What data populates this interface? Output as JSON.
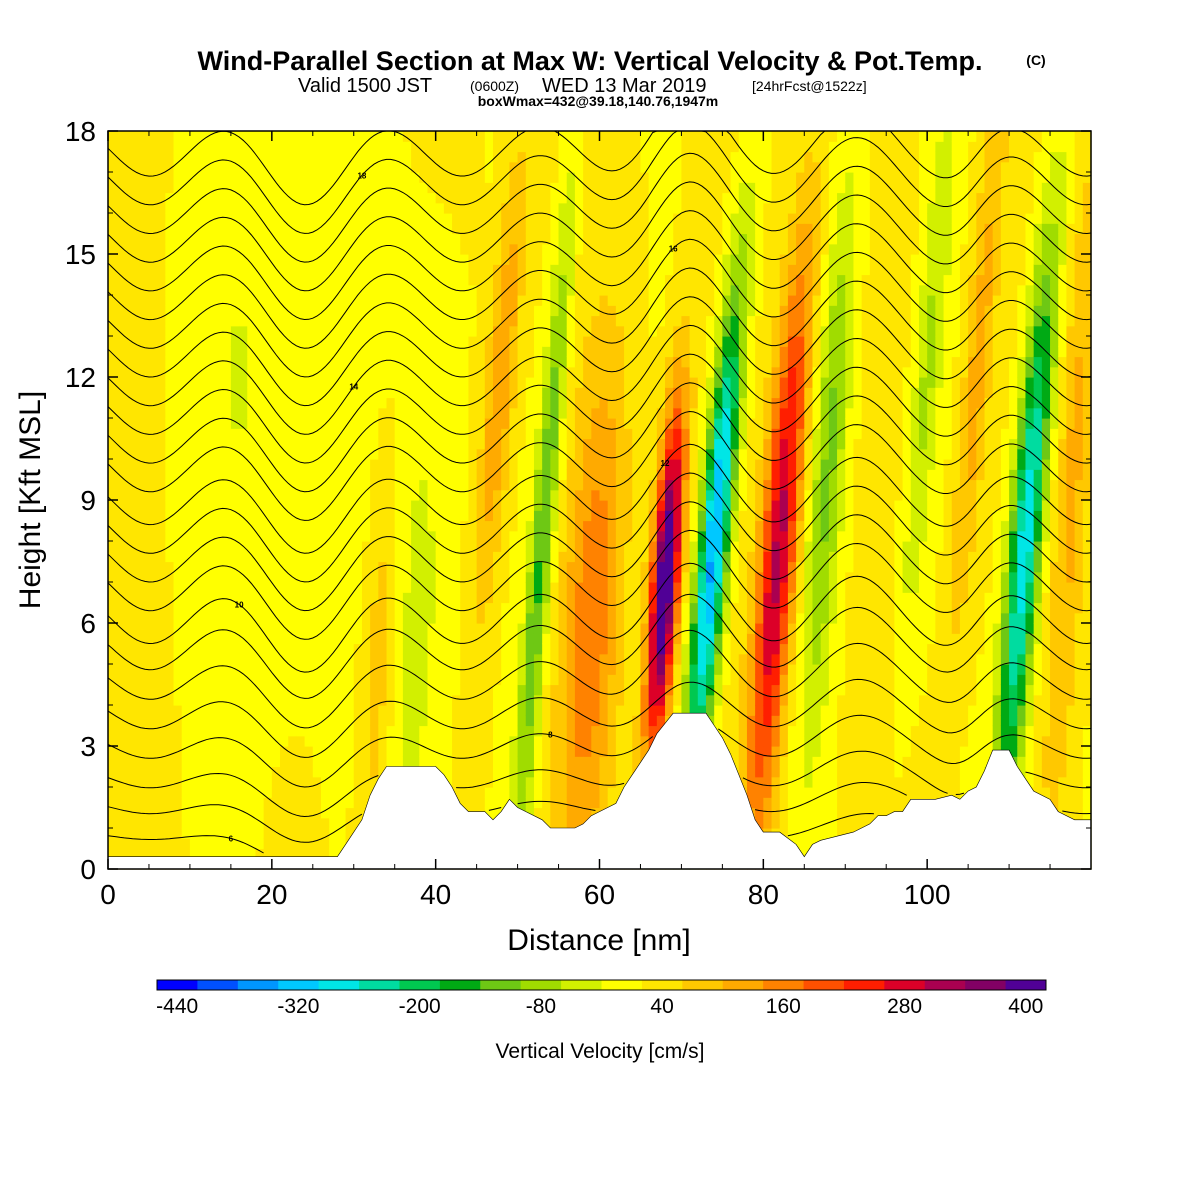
{
  "title": {
    "main": "Wind-Parallel Section at Max W: Vertical Velocity & Pot.Temp.",
    "copyright": "(C)",
    "valid_prefix": "Valid 1500 JST",
    "valid_zulu": "(0600Z)",
    "valid_date": "WED 13 Mar 2019",
    "valid_fcst": "[24hrFcst@1522z]",
    "boxline": "boxWmax=432@39.18,140.76,1947m"
  },
  "chart_data": {
    "type": "heatmap",
    "title": "Wind-Parallel Section at Max W: Vertical Velocity & Pot.Temp.",
    "xlabel": "Distance [nm]",
    "ylabel": "Height [Kft MSL]",
    "xlim": [
      0,
      120
    ],
    "ylim": [
      0,
      18
    ],
    "x_ticks": [
      "0",
      "20",
      "40",
      "60",
      "80",
      "100"
    ],
    "x_tick_values": [
      0,
      20,
      40,
      60,
      80,
      100
    ],
    "y_ticks": [
      "0",
      "3",
      "6",
      "9",
      "12",
      "15",
      "18"
    ],
    "y_tick_values": [
      0,
      3,
      6,
      9,
      12,
      15,
      18
    ],
    "colorbar": {
      "label": "Vertical Velocity [cm/s]",
      "tick_labels": [
        "-440",
        "-320",
        "-200",
        "-80",
        "40",
        "160",
        "280",
        "400"
      ],
      "tick_values": [
        -440,
        -320,
        -200,
        -80,
        40,
        160,
        280,
        400
      ],
      "min": -460,
      "step": 40,
      "colors": [
        "#0000ff",
        "#0050ff",
        "#0096ff",
        "#00c8ff",
        "#00e6e6",
        "#00dca0",
        "#00c850",
        "#00aa14",
        "#6ec814",
        "#a0dc00",
        "#d2f000",
        "#ffff00",
        "#ffe600",
        "#ffc800",
        "#ffaa00",
        "#ff8200",
        "#ff5000",
        "#ff1e00",
        "#dc0028",
        "#aa0050",
        "#820064",
        "#500096"
      ]
    },
    "terrain": [
      [
        0,
        0.3
      ],
      [
        10,
        0.3
      ],
      [
        20,
        0.3
      ],
      [
        28,
        0.3
      ],
      [
        29,
        0.6
      ],
      [
        31,
        1.2
      ],
      [
        32,
        1.8
      ],
      [
        33,
        2.2
      ],
      [
        34,
        2.5
      ],
      [
        40,
        2.5
      ],
      [
        41,
        2.3
      ],
      [
        42,
        2.0
      ],
      [
        43,
        1.6
      ],
      [
        44,
        1.4
      ],
      [
        46,
        1.4
      ],
      [
        47,
        1.2
      ],
      [
        48,
        1.4
      ],
      [
        49,
        1.7
      ],
      [
        50,
        1.5
      ],
      [
        51,
        1.4
      ],
      [
        53,
        1.2
      ],
      [
        54,
        1.0
      ],
      [
        57,
        1.0
      ],
      [
        58,
        1.1
      ],
      [
        59,
        1.3
      ],
      [
        60,
        1.4
      ],
      [
        62,
        1.6
      ],
      [
        63,
        2.0
      ],
      [
        64,
        2.3
      ],
      [
        65,
        2.6
      ],
      [
        66,
        2.9
      ],
      [
        67,
        3.3
      ],
      [
        69,
        3.8
      ],
      [
        73,
        3.8
      ],
      [
        74,
        3.5
      ],
      [
        75,
        3.2
      ],
      [
        76,
        2.8
      ],
      [
        77,
        2.3
      ],
      [
        78,
        1.8
      ],
      [
        79,
        1.2
      ],
      [
        80,
        0.9
      ],
      [
        82,
        0.9
      ],
      [
        84,
        0.6
      ],
      [
        85,
        0.3
      ],
      [
        86,
        0.6
      ],
      [
        87,
        0.7
      ],
      [
        91,
        0.9
      ],
      [
        93,
        1.1
      ],
      [
        94,
        1.3
      ],
      [
        95,
        1.3
      ],
      [
        96,
        1.4
      ],
      [
        97,
        1.4
      ],
      [
        98,
        1.7
      ],
      [
        101,
        1.7
      ],
      [
        103,
        1.8
      ],
      [
        104,
        1.7
      ],
      [
        105,
        1.9
      ],
      [
        106,
        2.0
      ],
      [
        107,
        2.4
      ],
      [
        108,
        2.9
      ],
      [
        110,
        2.9
      ],
      [
        111,
        2.5
      ],
      [
        112,
        2.2
      ],
      [
        113,
        1.9
      ],
      [
        115,
        1.7
      ],
      [
        116,
        1.4
      ],
      [
        118,
        1.2
      ],
      [
        120,
        1.2
      ]
    ],
    "w_features": [
      {
        "x": 68.0,
        "z": 7.0,
        "amp": 430,
        "sx": 1.2,
        "sz": 3.0,
        "tilt": 0.35
      },
      {
        "x": 74.0,
        "z": 8.0,
        "amp": -380,
        "sx": 1.3,
        "sz": 4.5,
        "tilt": 0.45
      },
      {
        "x": 82.0,
        "z": 8.0,
        "amp": 290,
        "sx": 1.6,
        "sz": 5.0,
        "tilt": 0.4
      },
      {
        "x": 112.0,
        "z": 8.0,
        "amp": -320,
        "sx": 1.4,
        "sz": 5.0,
        "tilt": 0.4
      },
      {
        "x": 53.0,
        "z": 8.0,
        "amp": -170,
        "sx": 1.0,
        "sz": 6.0,
        "tilt": 0.4
      },
      {
        "x": 59.0,
        "z": 6.0,
        "amp": 140,
        "sx": 2.5,
        "sz": 4.5,
        "tilt": 0.3
      },
      {
        "x": 48.0,
        "z": 12.0,
        "amp": 120,
        "sx": 1.3,
        "sz": 4.0,
        "tilt": 0.4
      },
      {
        "x": 88.0,
        "z": 10.0,
        "amp": -130,
        "sx": 1.5,
        "sz": 5.0,
        "tilt": 0.35
      },
      {
        "x": 100.0,
        "z": 12.0,
        "amp": -90,
        "sx": 1.2,
        "sz": 5.0,
        "tilt": 0.4
      },
      {
        "x": 106.0,
        "z": 12.0,
        "amp": 100,
        "sx": 1.2,
        "sz": 5.0,
        "tilt": 0.4
      },
      {
        "x": 38.0,
        "z": 6.0,
        "amp": -60,
        "sx": 3.0,
        "sz": 6.0,
        "tilt": 0.2
      },
      {
        "x": 33.0,
        "z": 5.0,
        "amp": 80,
        "sx": 1.5,
        "sz": 4.0,
        "tilt": 0.2
      },
      {
        "x": 20.0,
        "z": 12.0,
        "amp": -45,
        "sx": 8.0,
        "sz": 6.0,
        "tilt": 0.0
      },
      {
        "x": 118.0,
        "z": 10.0,
        "amp": 90,
        "sx": 1.5,
        "sz": 6.0,
        "tilt": 0.3
      }
    ],
    "theta_contours": [
      {
        "base": 0.8,
        "label": "6"
      },
      {
        "base": 1.5
      },
      {
        "base": 2.2
      },
      {
        "base": 3.0,
        "label": "8"
      },
      {
        "base": 3.8
      },
      {
        "base": 4.6
      },
      {
        "base": 5.4
      },
      {
        "base": 6.1,
        "label": "10"
      },
      {
        "base": 6.9
      },
      {
        "base": 7.6
      },
      {
        "base": 8.3
      },
      {
        "base": 9.0,
        "label": "12"
      },
      {
        "base": 9.8
      },
      {
        "base": 10.5
      },
      {
        "base": 11.2
      },
      {
        "base": 11.9,
        "label": "14"
      },
      {
        "base": 12.6
      },
      {
        "base": 13.3
      },
      {
        "base": 14.0,
        "label": "16"
      },
      {
        "base": 14.7
      },
      {
        "base": 15.4
      },
      {
        "base": 16.1
      },
      {
        "base": 16.8,
        "label": "18"
      },
      {
        "base": 17.5
      }
    ]
  }
}
